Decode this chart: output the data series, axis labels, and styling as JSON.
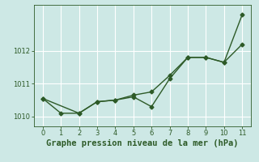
{
  "line1_x": [
    0,
    1,
    2,
    3,
    4,
    5,
    6,
    7,
    8,
    9,
    10,
    11
  ],
  "line1_y": [
    1010.55,
    1010.1,
    1010.1,
    1010.45,
    1010.5,
    1010.6,
    1010.3,
    1011.15,
    1011.8,
    1011.8,
    1011.65,
    1013.1
  ],
  "line2_x": [
    0,
    2,
    3,
    4,
    5,
    6,
    7,
    8,
    9,
    10,
    11
  ],
  "line2_y": [
    1010.55,
    1010.1,
    1010.45,
    1010.5,
    1010.65,
    1010.75,
    1011.25,
    1011.8,
    1011.8,
    1011.65,
    1012.2
  ],
  "line_color": "#2d5a27",
  "marker": "D",
  "marker_size": 2.5,
  "background_color": "#cde8e5",
  "grid_color": "#ffffff",
  "xlabel": "Graphe pression niveau de la mer (hPa)",
  "xlabel_color": "#2d5a27",
  "xlabel_fontsize": 7.5,
  "tick_color": "#2d5a27",
  "tick_labelsize": 6,
  "ylim": [
    1009.7,
    1013.4
  ],
  "xlim": [
    -0.5,
    11.5
  ],
  "yticks": [
    1010,
    1011,
    1012
  ],
  "xticks": [
    0,
    1,
    2,
    3,
    4,
    5,
    6,
    7,
    8,
    9,
    10,
    11
  ],
  "linewidth": 1.0
}
